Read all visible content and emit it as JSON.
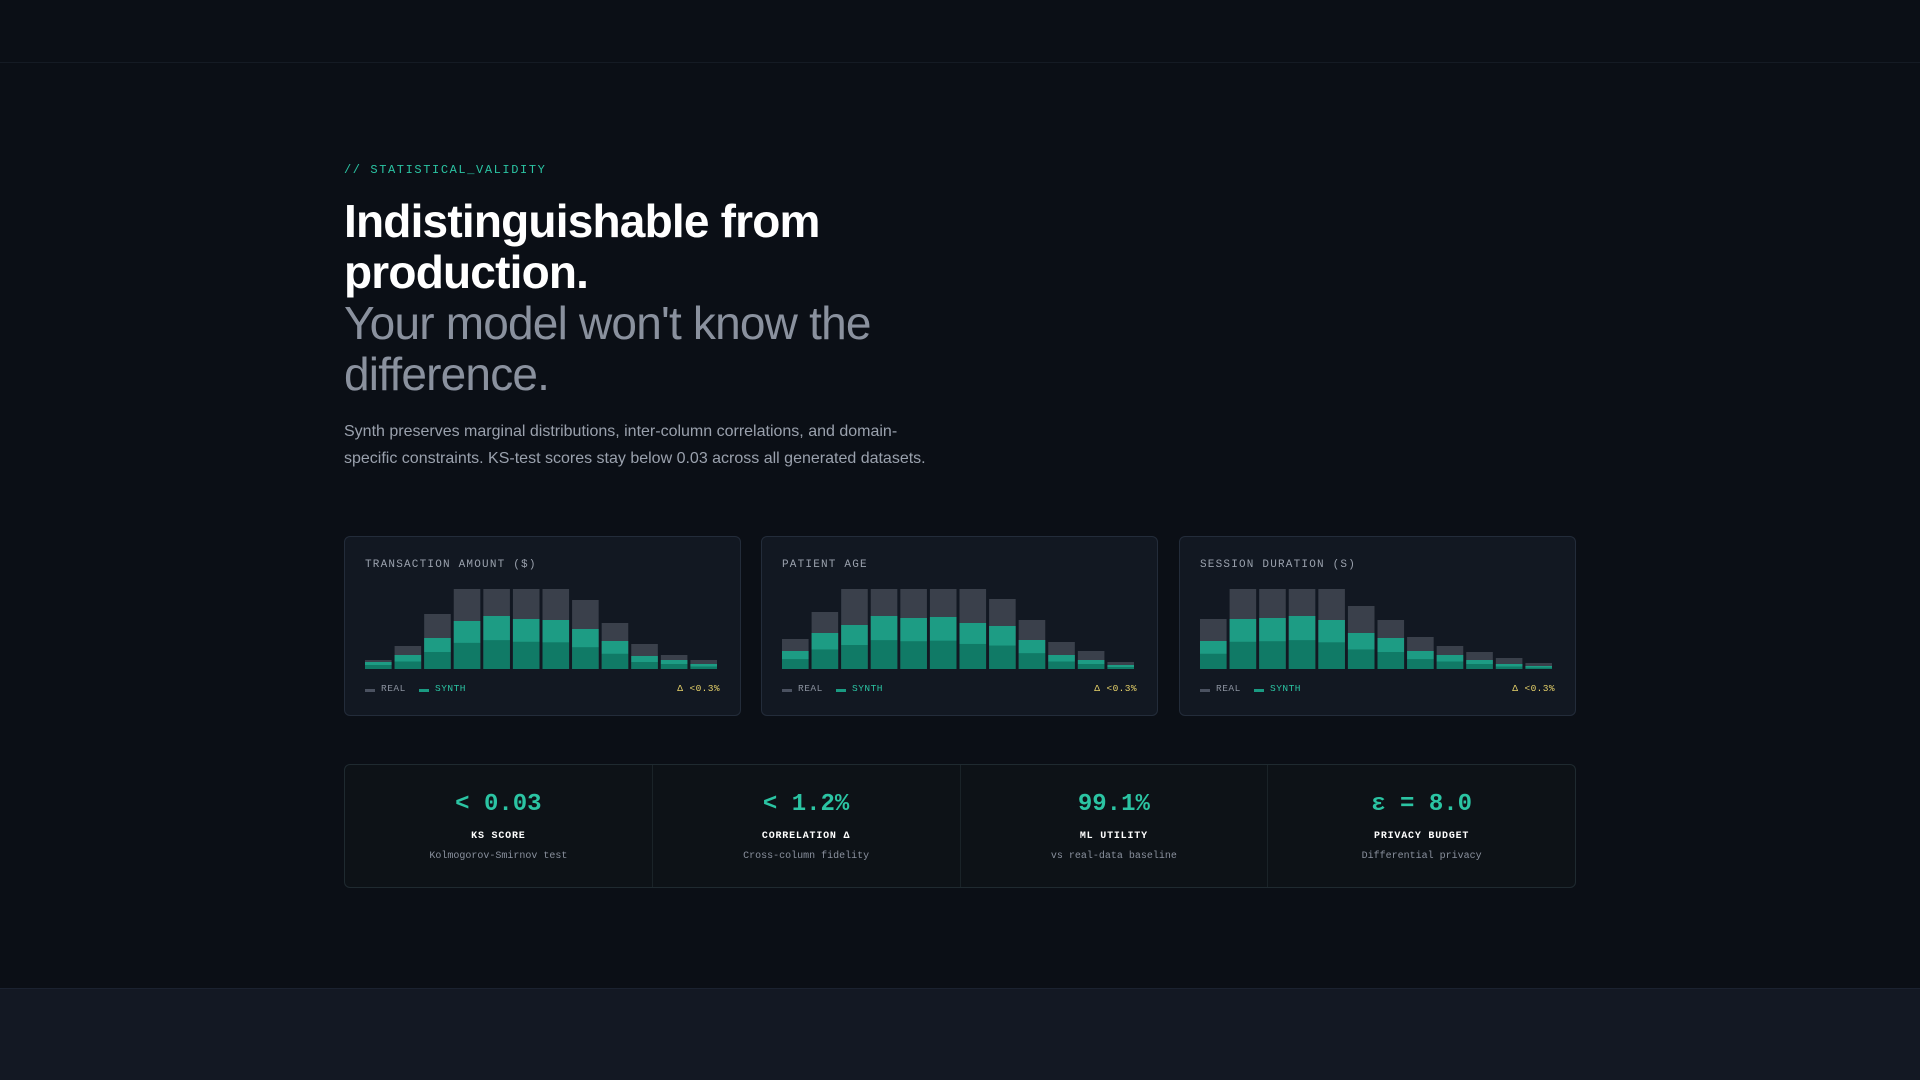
{
  "section": {
    "eyebrow": "// STATISTICAL_VALIDITY",
    "headline_line1": "Indistinguishable from production.",
    "headline_line2": "Your model won't know the difference.",
    "lead": "Synth preserves marginal distributions, inter-column correlations, and domain-specific constraints. KS-test scores stay below 0.03 across all generated datasets."
  },
  "colors": {
    "accent": "#2bc4a3",
    "real_bar": "#3a404b",
    "synth_bar_top": "#1d9c84",
    "synth_bar_bottom": "#107a66",
    "delta": "#e8d36a"
  },
  "legend": {
    "real": "REAL",
    "synth": "SYNTH"
  },
  "cards": [
    {
      "title": "TRANSACTION AMOUNT ($)",
      "delta": "Δ <0.3%",
      "real": [
        9,
        23,
        55,
        80,
        80,
        80,
        80,
        69,
        46,
        25,
        14,
        9
      ],
      "synth": [
        7,
        14,
        31,
        48,
        53,
        50,
        49,
        40,
        28,
        13,
        9,
        5
      ]
    },
    {
      "title": "PATIENT AGE",
      "delta": "Δ <0.3%",
      "real": [
        30,
        57,
        80,
        80,
        80,
        80,
        80,
        70,
        49,
        27,
        18,
        7
      ],
      "synth": [
        18,
        36,
        44,
        53,
        51,
        52,
        46,
        43,
        29,
        14,
        9,
        4
      ]
    },
    {
      "title": "SESSION DURATION (S)",
      "delta": "Δ <0.3%",
      "real": [
        50,
        80,
        80,
        80,
        80,
        63,
        49,
        32,
        23,
        17,
        11,
        6
      ],
      "synth": [
        28,
        50,
        51,
        53,
        49,
        36,
        31,
        18,
        14,
        9,
        5,
        3
      ]
    }
  ],
  "stats": [
    {
      "value": "< 0.03",
      "label": "KS SCORE",
      "sub": "Kolmogorov-Smirnov test"
    },
    {
      "value": "< 1.2%",
      "label": "CORRELATION Δ",
      "sub": "Cross-column fidelity"
    },
    {
      "value": "99.1%",
      "label": "ML UTILITY",
      "sub": "vs real-data baseline"
    },
    {
      "value": "ε = 8.0",
      "label": "PRIVACY BUDGET",
      "sub": "Differential privacy"
    }
  ]
}
